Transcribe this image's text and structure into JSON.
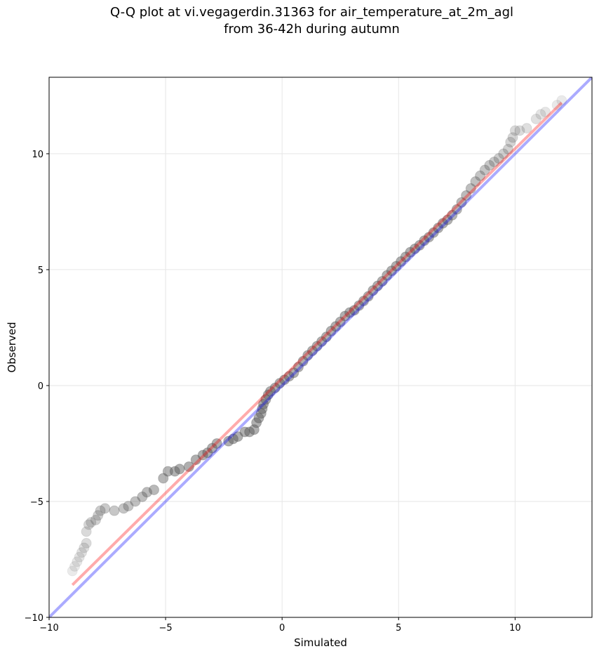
{
  "chart_data": {
    "type": "scatter",
    "title_line1": "Q-Q plot at vi.vegagerdin.31363 for air_temperature_at_2m_agl",
    "title_line2": "from 36-42h during autumn",
    "xlabel": "Simulated",
    "ylabel": "Observed",
    "xlim": [
      -10,
      13.3
    ],
    "ylim": [
      -10,
      13.3
    ],
    "xticks": [
      -10,
      -5,
      0,
      5,
      10
    ],
    "yticks": [
      -10,
      -5,
      0,
      5,
      10
    ],
    "xtick_labels": [
      "−10",
      "−5",
      "0",
      "5",
      "10"
    ],
    "ytick_labels": [
      "−10",
      "−5",
      "0",
      "5",
      "10"
    ],
    "grid": true,
    "series": [
      {
        "kind": "quantiles",
        "points": [
          [
            -9.0,
            -8.0
          ],
          [
            -8.9,
            -7.8
          ],
          [
            -8.8,
            -7.6
          ],
          [
            -8.7,
            -7.4
          ],
          [
            -8.6,
            -7.2
          ],
          [
            -8.5,
            -7.0
          ],
          [
            -8.4,
            -6.8
          ],
          [
            -8.4,
            -6.3
          ],
          [
            -8.3,
            -6.0
          ],
          [
            -8.2,
            -5.9
          ],
          [
            -8.0,
            -5.8
          ],
          [
            -7.9,
            -5.6
          ],
          [
            -7.8,
            -5.4
          ],
          [
            -7.6,
            -5.3
          ],
          [
            -7.2,
            -5.4
          ],
          [
            -6.8,
            -5.3
          ],
          [
            -6.6,
            -5.2
          ],
          [
            -6.3,
            -5.0
          ],
          [
            -6.0,
            -4.8
          ],
          [
            -5.8,
            -4.6
          ],
          [
            -5.5,
            -4.5
          ],
          [
            -5.1,
            -4.0
          ],
          [
            -4.9,
            -3.7
          ],
          [
            -4.6,
            -3.7
          ],
          [
            -4.4,
            -3.6
          ],
          [
            -4.0,
            -3.5
          ],
          [
            -3.7,
            -3.2
          ],
          [
            -3.4,
            -3.0
          ],
          [
            -3.2,
            -2.9
          ],
          [
            -3.0,
            -2.7
          ],
          [
            -2.8,
            -2.5
          ],
          [
            -2.3,
            -2.4
          ],
          [
            -2.1,
            -2.3
          ],
          [
            -1.9,
            -2.2
          ],
          [
            -1.6,
            -2.0
          ],
          [
            -1.4,
            -2.0
          ],
          [
            -1.2,
            -1.9
          ],
          [
            -1.1,
            -1.6
          ],
          [
            -1.0,
            -1.4
          ],
          [
            -0.9,
            -1.2
          ],
          [
            -0.85,
            -1.0
          ],
          [
            -0.8,
            -0.8
          ],
          [
            -0.7,
            -0.6
          ],
          [
            -0.6,
            -0.4
          ],
          [
            -0.5,
            -0.25
          ],
          [
            -0.3,
            -0.1
          ],
          [
            -0.1,
            0.1
          ],
          [
            0.1,
            0.25
          ],
          [
            0.3,
            0.4
          ],
          [
            0.5,
            0.55
          ],
          [
            0.7,
            0.8
          ],
          [
            0.9,
            1.05
          ],
          [
            1.1,
            1.3
          ],
          [
            1.3,
            1.5
          ],
          [
            1.5,
            1.7
          ],
          [
            1.7,
            1.9
          ],
          [
            1.9,
            2.1
          ],
          [
            2.1,
            2.35
          ],
          [
            2.3,
            2.55
          ],
          [
            2.5,
            2.75
          ],
          [
            2.7,
            3.0
          ],
          [
            2.9,
            3.15
          ],
          [
            3.1,
            3.25
          ],
          [
            3.3,
            3.45
          ],
          [
            3.5,
            3.65
          ],
          [
            3.7,
            3.85
          ],
          [
            3.9,
            4.1
          ],
          [
            4.1,
            4.3
          ],
          [
            4.3,
            4.5
          ],
          [
            4.5,
            4.75
          ],
          [
            4.7,
            4.95
          ],
          [
            4.9,
            5.15
          ],
          [
            5.1,
            5.35
          ],
          [
            5.3,
            5.55
          ],
          [
            5.5,
            5.75
          ],
          [
            5.7,
            5.9
          ],
          [
            5.9,
            6.05
          ],
          [
            6.1,
            6.25
          ],
          [
            6.3,
            6.4
          ],
          [
            6.5,
            6.6
          ],
          [
            6.7,
            6.8
          ],
          [
            6.9,
            7.0
          ],
          [
            7.1,
            7.15
          ],
          [
            7.3,
            7.35
          ],
          [
            7.5,
            7.6
          ],
          [
            7.7,
            7.9
          ],
          [
            7.9,
            8.2
          ],
          [
            8.1,
            8.5
          ],
          [
            8.3,
            8.8
          ],
          [
            8.5,
            9.05
          ],
          [
            8.7,
            9.3
          ],
          [
            8.9,
            9.5
          ],
          [
            9.1,
            9.65
          ],
          [
            9.3,
            9.8
          ],
          [
            9.5,
            10.0
          ],
          [
            9.7,
            10.2
          ],
          [
            9.8,
            10.5
          ],
          [
            9.9,
            10.7
          ],
          [
            10.0,
            11.0
          ],
          [
            10.2,
            11.0
          ],
          [
            10.5,
            11.1
          ],
          [
            10.9,
            11.5
          ],
          [
            11.1,
            11.7
          ],
          [
            11.3,
            11.8
          ],
          [
            11.8,
            12.1
          ],
          [
            12.0,
            12.3
          ]
        ]
      },
      {
        "kind": "identity-line",
        "color": "#0000ff",
        "from": [
          -10,
          -10
        ],
        "to": [
          13.3,
          13.3
        ]
      },
      {
        "kind": "fit-line",
        "color": "#ff0000",
        "from": [
          -9.0,
          -8.6
        ],
        "to": [
          12.0,
          12.2
        ]
      }
    ]
  }
}
